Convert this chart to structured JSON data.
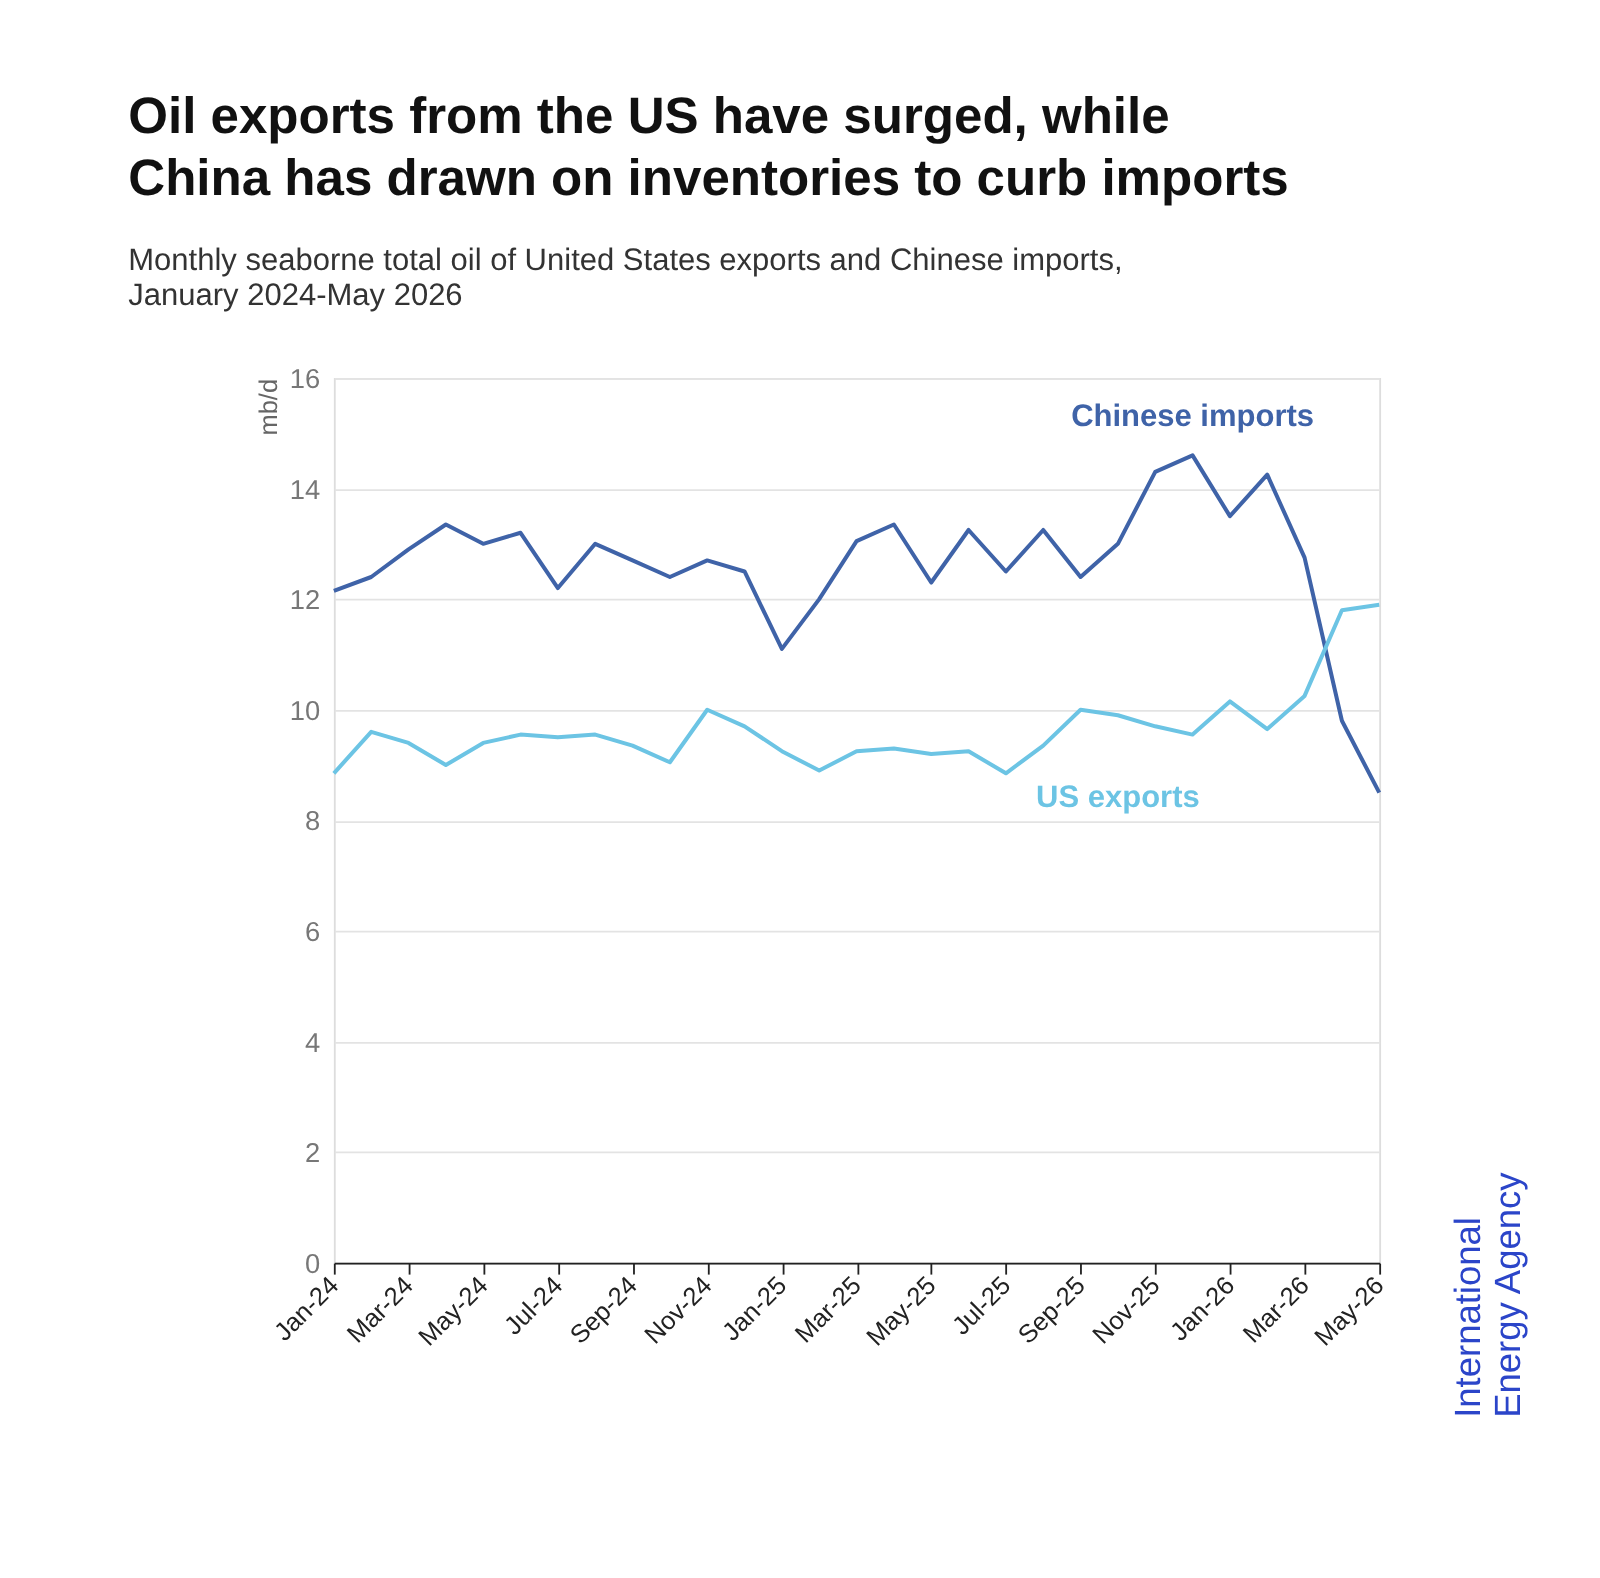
{
  "chart_data": {
    "type": "line",
    "title": [
      "Oil exports from the US  have surged, while",
      "China has drawn on inventories to curb imports"
    ],
    "subtitle": [
      "Monthly seaborne total oil of United States exports and Chinese imports,",
      "January 2024-May 2026"
    ],
    "ylabel": "mb/d",
    "categories": [
      "Jan-24",
      null,
      "Mar-24",
      null,
      "May-24",
      null,
      "Jul-24",
      null,
      "Sep-24",
      null,
      "Nov-24",
      null,
      "Jan-25",
      null,
      "Mar-25",
      null,
      "May-25",
      null,
      "Jul-25",
      null,
      "Sep-25",
      null,
      "Nov-25",
      null,
      "Jan-26",
      null,
      "Mar-26",
      null,
      "May-26"
    ],
    "series": [
      {
        "name": "Chinese imports",
        "color": "#3f63a8",
        "values": [
          12.15,
          12.4,
          12.9,
          13.35,
          13.0,
          13.2,
          12.2,
          13.0,
          12.7,
          12.4,
          12.7,
          12.5,
          11.1,
          12.0,
          13.05,
          13.35,
          12.3,
          13.25,
          12.5,
          13.25,
          12.4,
          13.0,
          14.3,
          14.6,
          13.5,
          14.25,
          12.75,
          9.8,
          8.5
        ]
      },
      {
        "name": "US exports",
        "color": "#6cc4e4",
        "values": [
          8.85,
          9.6,
          9.4,
          9.0,
          9.4,
          9.55,
          9.5,
          9.55,
          9.35,
          9.05,
          10.0,
          9.7,
          9.25,
          8.9,
          9.25,
          9.3,
          9.2,
          9.25,
          8.85,
          9.35,
          10.0,
          9.9,
          9.7,
          9.55,
          10.15,
          9.65,
          10.25,
          11.8,
          11.9
        ]
      }
    ],
    "ylim": [
      0,
      16
    ],
    "yticks": [
      0,
      2,
      4,
      6,
      8,
      10,
      12,
      14,
      16
    ],
    "grid": "y",
    "legend": false,
    "marker": "none",
    "line_style": "solid",
    "annotations": [
      "International Energy Agency"
    ]
  }
}
